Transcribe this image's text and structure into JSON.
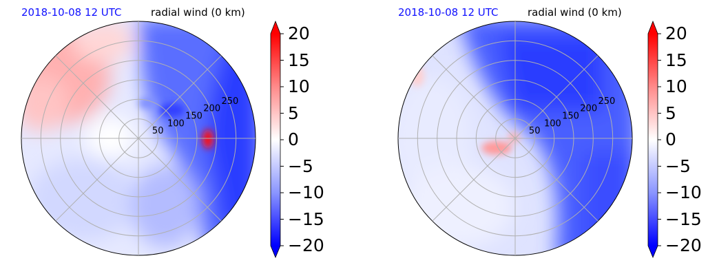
{
  "chart_data": [
    {
      "type": "heatmap",
      "projection": "polar",
      "title_left": "2018-10-08 12 UTC",
      "title_right": "radial wind (0 km)",
      "radial_ticks": [
        "50",
        "100",
        "150",
        "200",
        "250"
      ],
      "radial_rmax": 300,
      "colorbar": {
        "ticks": [
          "20",
          "15",
          "10",
          "5",
          "0",
          "−5",
          "−10",
          "−15",
          "−20"
        ],
        "range": [
          -20,
          20
        ],
        "extend": "both"
      }
    },
    {
      "type": "heatmap",
      "projection": "polar",
      "title_left": "2018-10-08 12 UTC",
      "title_right": "radial wind (0 km)",
      "radial_ticks": [
        "50",
        "100",
        "150",
        "200",
        "250"
      ],
      "radial_rmax": 300,
      "colorbar": {
        "ticks": [
          "20",
          "15",
          "10",
          "5",
          "0",
          "−5",
          "−10",
          "−15",
          "−20"
        ],
        "range": [
          -20,
          20
        ],
        "extend": "both"
      }
    }
  ],
  "colors": {
    "date_label": "#1010ff",
    "negative": "#1a2cff",
    "positive": "#ff1a1a",
    "grid": "#b0b0b0"
  }
}
